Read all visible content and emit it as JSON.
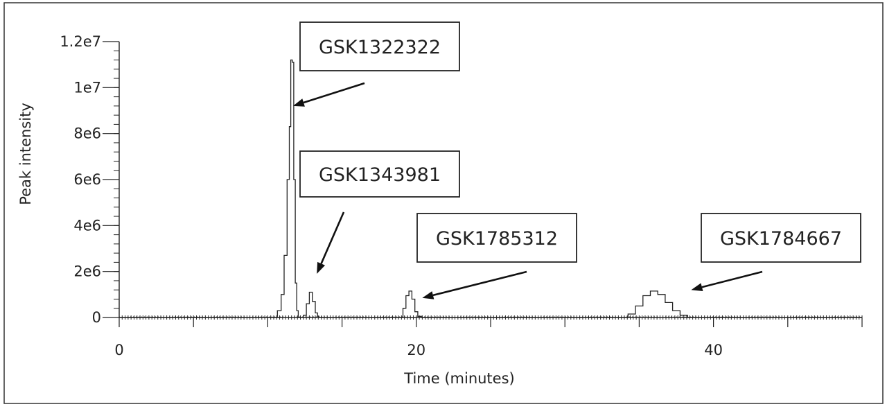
{
  "chart_data": {
    "type": "line",
    "xlabel": "Time (minutes)",
    "ylabel": "Peak intensity",
    "xlim": [
      0,
      50
    ],
    "ylim": [
      0,
      12000000
    ],
    "x_ticks": [
      0,
      20,
      40
    ],
    "x_tick_labels": [
      "0",
      "20",
      "40"
    ],
    "y_ticks": [
      0,
      2000000,
      4000000,
      6000000,
      8000000,
      10000000,
      12000000
    ],
    "y_tick_labels": [
      "0",
      "2e6",
      "4e6",
      "6e6",
      "8e6",
      "1e7",
      "1.2e7"
    ],
    "grid": false,
    "series": [
      {
        "x": [
          0,
          10.5,
          10.8,
          11.0,
          11.2,
          11.4,
          11.5,
          11.6,
          11.7,
          11.8,
          11.9,
          12.0,
          12.1,
          12.3,
          12.5,
          12.7,
          12.9,
          13.1,
          13.3,
          13.4,
          13.5,
          13.7,
          13.9,
          19.0,
          19.2,
          19.4,
          19.6,
          19.8,
          20.0,
          20.2,
          20.5,
          34.0,
          34.5,
          35.0,
          35.5,
          36.0,
          36.5,
          37.0,
          37.5,
          38.0,
          38.5,
          50
        ],
        "y": [
          0,
          0,
          300000,
          1000000,
          2700000,
          6000000,
          8300000,
          11200000,
          11100000,
          6000000,
          1500000,
          300000,
          0,
          0,
          100000,
          600000,
          1100000,
          700000,
          200000,
          50000,
          0,
          0,
          0,
          0,
          400000,
          950000,
          1150000,
          800000,
          250000,
          50000,
          0,
          0,
          150000,
          500000,
          950000,
          1150000,
          1000000,
          650000,
          300000,
          100000,
          0,
          0
        ]
      }
    ],
    "annotations": [
      {
        "text": "GSK1322322",
        "x": 11.7,
        "y": 9200000
      },
      {
        "text": "GSK1343981",
        "x": 13.3,
        "y": 1900000
      },
      {
        "text": "GSK1785312",
        "x": 20.4,
        "y": 850000
      },
      {
        "text": "GSK1784667",
        "x": 38.5,
        "y": 1200000
      }
    ]
  }
}
